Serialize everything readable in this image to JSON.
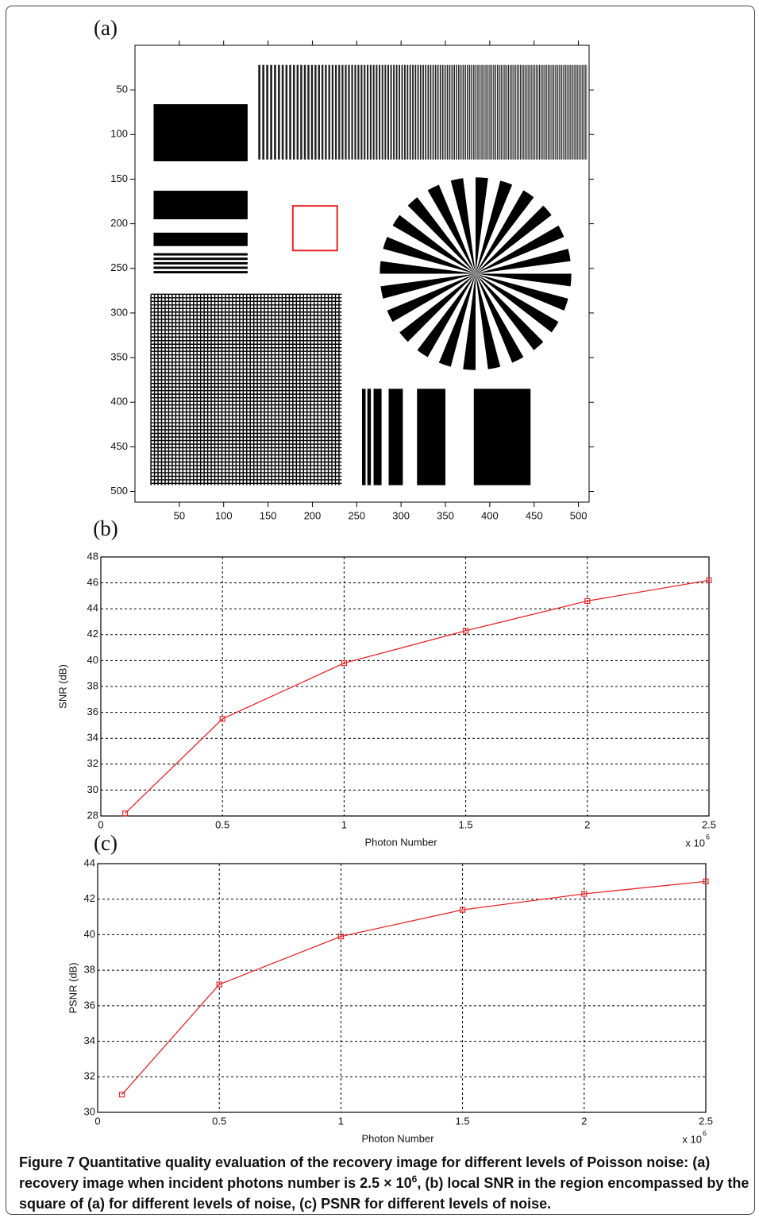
{
  "chart_data": [
    {
      "type": "image",
      "panel_label": "(a)",
      "xlim": [
        0,
        512
      ],
      "ylim": [
        0,
        512
      ],
      "xticks": [
        50,
        100,
        150,
        200,
        250,
        300,
        350,
        400,
        450,
        500
      ],
      "yticks": [
        50,
        100,
        150,
        200,
        250,
        300,
        350,
        400,
        450,
        500
      ]
    },
    {
      "type": "line",
      "panel_label": "(b)",
      "x_label": "Photon Number",
      "y_label": "SNR (dB)",
      "x_scale_label": "x 10",
      "x_scale_exponent": "6",
      "x": [
        0.1,
        0.5,
        1,
        1.5,
        2,
        2.5
      ],
      "series": [
        {
          "color": "#e8262a",
          "values": [
            28.2,
            35.5,
            39.8,
            42.3,
            44.6,
            46.2
          ]
        }
      ],
      "xlim": [
        0,
        2.5
      ],
      "ylim": [
        28,
        48
      ],
      "xticks": [
        0,
        0.5,
        1,
        1.5,
        2,
        2.5
      ],
      "yticks": [
        28,
        30,
        32,
        34,
        36,
        38,
        40,
        42,
        44,
        46,
        48
      ],
      "grid": true
    },
    {
      "type": "line",
      "panel_label": "(c)",
      "x_label": "Photon Number",
      "y_label": "PSNR (dB)",
      "x_scale_label": "x 10",
      "x_scale_exponent": "6",
      "x": [
        0.1,
        0.5,
        1,
        1.5,
        2,
        2.5
      ],
      "series": [
        {
          "color": "#e8262a",
          "values": [
            31.0,
            37.2,
            39.9,
            41.4,
            42.3,
            43.0
          ]
        }
      ],
      "xlim": [
        0,
        2.5
      ],
      "ylim": [
        30,
        44
      ],
      "xticks": [
        0,
        0.5,
        1,
        1.5,
        2,
        2.5
      ],
      "yticks": [
        30,
        32,
        34,
        36,
        38,
        40,
        42,
        44
      ],
      "grid": true
    }
  ],
  "caption": {
    "label": "Figure 7",
    "text1": "Quantitative quality evaluation of the recovery image for different levels of Poisson noise: (a) recovery image when incident photons number is 2.5 × 10",
    "sup": "6",
    "text2": ", (b) local SNR in the region encompassed by the square of (a) for different levels of noise, (c) PSNR for different levels of noise."
  }
}
